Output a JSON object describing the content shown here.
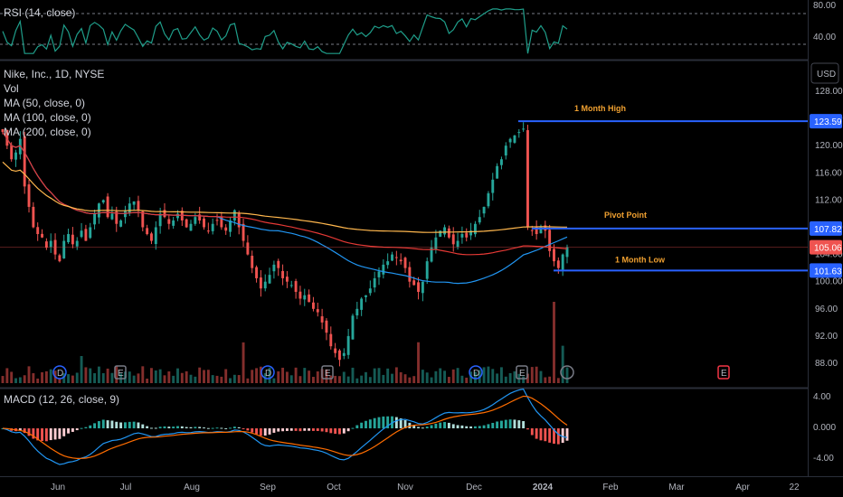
{
  "panels": {
    "rsi": {
      "title": "RSI (14, close)",
      "ticks": [
        "80.00",
        "40.00"
      ]
    },
    "main": {
      "symbol_line": "Nike, Inc., 1D, NYSE",
      "indicators": [
        "Vol",
        "MA (50, close, 0)",
        "MA (100, close, 0)",
        "MA (200, close, 0)"
      ],
      "currency_button": "USD",
      "price_ticks": [
        "128.00",
        "124.00",
        "120.00",
        "116.00",
        "112.00",
        "108.00",
        "104.00",
        "100.00",
        "96.00",
        "92.00",
        "88.00"
      ]
    },
    "macd": {
      "title": "MACD (12, 26, close, 9)",
      "ticks": [
        "4.00",
        "0.000",
        "-4.00"
      ]
    }
  },
  "x_axis": {
    "labels": [
      "Jun",
      "Jul",
      "Aug",
      "Sep",
      "Oct",
      "Nov",
      "Dec",
      "2024",
      "Feb",
      "Mar",
      "Apr",
      "22"
    ]
  },
  "annotations": [
    {
      "label": "1 Month  High",
      "value": 123.59,
      "value_label": "123.59"
    },
    {
      "label": "Pivot Point",
      "value": 107.82,
      "value_label": "107.82"
    },
    {
      "label": "1 Month Low",
      "value": 101.63,
      "value_label": "101.63"
    }
  ],
  "last_price": {
    "value": 105.06,
    "label": "105.06"
  },
  "event_markers": [
    "D",
    "E",
    "D",
    "E",
    "D",
    "E",
    "E"
  ],
  "colors": {
    "up": "#26a69a",
    "down": "#ef5350",
    "ma50": "#2196f3",
    "ma100": "#e53935",
    "ma200": "#ffb74d",
    "level_line": "#2962ff",
    "annotation_text": "#f0a030",
    "rsi_line": "#1f9e8a",
    "macd_line": "#2196f3",
    "signal_line": "#ff6d00"
  },
  "chart_data": {
    "type": "candlestick",
    "title": "Nike, Inc., 1D, NYSE",
    "ylim": [
      86.5,
      130
    ],
    "x_months": [
      "Jun",
      "Jul",
      "Aug",
      "Sep",
      "Oct",
      "Nov",
      "Dec",
      "2024",
      "Feb",
      "Mar",
      "Apr"
    ],
    "close_by_session": [
      122,
      120,
      118,
      119,
      121,
      114,
      111,
      108,
      107,
      106.5,
      105,
      106,
      104,
      103,
      106,
      107,
      105.5,
      106,
      107.5,
      106,
      108,
      110,
      111.5,
      112,
      109.5,
      110,
      108.5,
      109,
      110.5,
      111.5,
      111.8,
      110.5,
      108,
      107,
      106,
      108,
      110,
      109.5,
      108.5,
      109,
      110,
      109,
      108,
      108.5,
      109.5,
      109,
      108,
      107.5,
      108.5,
      109,
      108,
      107.5,
      109,
      110.5,
      108,
      106,
      104,
      102,
      100.5,
      99,
      100,
      101,
      102.5,
      102,
      100.5,
      100,
      99.5,
      98.5,
      97.5,
      98,
      97,
      96,
      95.5,
      94,
      92.5,
      90.5,
      89.5,
      88.5,
      89.5,
      92,
      95,
      96,
      97.5,
      98,
      99,
      100.5,
      101.5,
      102.5,
      103,
      104,
      103.5,
      103,
      102,
      100,
      99.5,
      98.5,
      100,
      103,
      105,
      106.5,
      107.5,
      108,
      106.5,
      105.5,
      106,
      107,
      106.5,
      107.5,
      108.5,
      109.5,
      111,
      113,
      115,
      117,
      118,
      120,
      121,
      121.5,
      122,
      122.5,
      108,
      107.5,
      107,
      108,
      107.5,
      104.5,
      103,
      102,
      104,
      105.06
    ],
    "annotations": {
      "1 Month  High": 123.59,
      "Pivot Point": 107.82,
      "1 Month Low": 101.63,
      "last": 105.06
    }
  }
}
